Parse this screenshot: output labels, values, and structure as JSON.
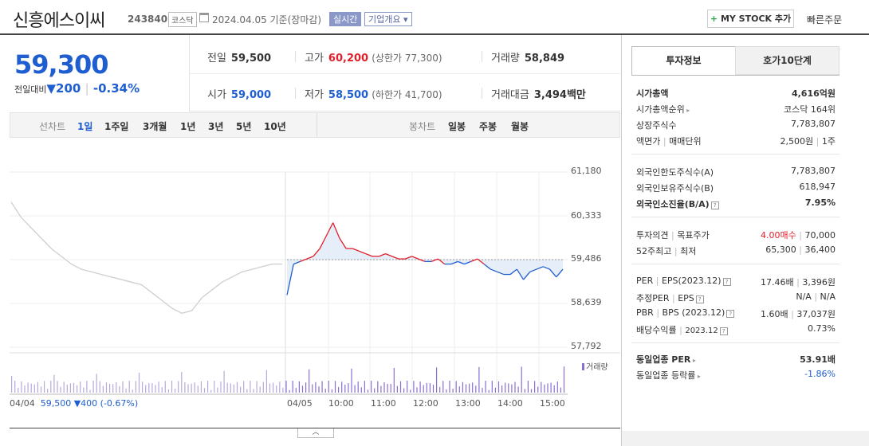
{
  "header": {
    "title": "신흥에스이씨",
    "code": "243840",
    "market": "코스닥",
    "date": "2024.04.05 기준(장마감)",
    "realtime": "실시간",
    "overview": "기업개요 ▾",
    "mystock_label": "MY STOCK 추가",
    "mystock_plus": "+",
    "quick_order": "빠른주문"
  },
  "price": {
    "current": "59,300",
    "change_label": "전일대비",
    "change_arrow": "▼",
    "change": "200",
    "sep": "|",
    "change_pct": "-0.34%"
  },
  "stats": {
    "prev_close": {
      "k": "전일",
      "v": "59,500"
    },
    "high": {
      "k": "고가",
      "v": "60,200",
      "sub": "(상한가 77,300)"
    },
    "volume": {
      "k": "거래량",
      "v": "58,849"
    },
    "open": {
      "k": "시가",
      "v": "59,000"
    },
    "low": {
      "k": "저가",
      "v": "58,500",
      "sub": "(하한가 41,700)"
    },
    "amount": {
      "k": "거래대금",
      "v": "3,494",
      "unit": "백만"
    }
  },
  "period_bar": {
    "line_label": "선차트",
    "line_items": [
      "1일",
      "1주일",
      "3개월",
      "1년",
      "3년",
      "5년",
      "10년"
    ],
    "candle_label": "봉차트",
    "candle_items": [
      "일봉",
      "주봉",
      "월봉"
    ]
  },
  "chart_data": {
    "type": "line",
    "y_ticks": [
      "61,180",
      "60,333",
      "59,486",
      "58,639",
      "57,792"
    ],
    "ylim": [
      57792,
      61180
    ],
    "reference_price": 59486,
    "x_ticks": [
      "04/04",
      "04/05",
      "10:00",
      "11:00",
      "12:00",
      "13:00",
      "14:00",
      "15:00"
    ],
    "volume_legend": "거래량",
    "prev_day_info": {
      "date": "04/04",
      "price": "59,500",
      "arrow": "▼",
      "change": "400",
      "pct": "(-0.67%)"
    },
    "series": [
      {
        "values": [
          60600,
          60300,
          60100,
          59900,
          59700,
          59550,
          59400,
          59300,
          59250,
          59200,
          59150,
          59100,
          59050,
          59000,
          58850,
          58700,
          58550,
          58450,
          58500,
          58750,
          58900,
          59050,
          59150,
          59250,
          59300,
          59350,
          59400,
          59400
        ]
      },
      {
        "values": [
          58800,
          59400,
          59450,
          59500,
          59550,
          59700,
          59950,
          60200,
          59900,
          59700,
          59700,
          59650,
          59600,
          59550,
          59550,
          59600,
          59550,
          59500,
          59500,
          59550,
          59500,
          59450,
          59450,
          59500,
          59400,
          59400,
          59450,
          59400,
          59450,
          59500,
          59400,
          59300,
          59250,
          59200,
          59200,
          59300,
          59100,
          59250,
          59300,
          59350,
          59300,
          59150,
          59300
        ]
      }
    ]
  },
  "tabs": {
    "active": "투자정보",
    "inactive": "호가10단계"
  },
  "info": {
    "market_cap": {
      "k": "시가총액",
      "v": "4,616억원"
    },
    "rank": {
      "k": "시가총액순위",
      "v": "코스닥 164위"
    },
    "shares": {
      "k": "상장주식수",
      "v": "7,783,807"
    },
    "par": {
      "k1": "액면가",
      "k2": "매매단위",
      "v1": "2,500원",
      "v2": "1주"
    },
    "foreign_limit": {
      "k": "외국인한도주식수(A)",
      "v": "7,783,807"
    },
    "foreign_hold": {
      "k": "외국인보유주식수(B)",
      "v": "618,947"
    },
    "foreign_ratio": {
      "k": "외국인소진율(B/A)",
      "v": "7.95%"
    },
    "opinion": {
      "k1": "투자의견",
      "k2": "목표주가",
      "v1": "4.00매수",
      "v2": "70,000"
    },
    "range52": {
      "k1": "52주최고",
      "k2": "최저",
      "v1": "65,300",
      "v2": "36,400"
    },
    "per": {
      "k1": "PER",
      "k2": "EPS(2023.12)",
      "v1": "17.46배",
      "v2": "3,396원"
    },
    "est_per": {
      "k1": "추정PER",
      "k2": "EPS",
      "v1": "N/A",
      "v2": "N/A"
    },
    "pbr": {
      "k1": "PBR",
      "k2": "BPS (2023.12)",
      "v1": "1.60배",
      "v2": "37,037원"
    },
    "dividend": {
      "k1": "배당수익률",
      "k2": "2023.12",
      "v": "0.73%"
    },
    "sector_per": {
      "k": "동일업종 PER",
      "v": "53.91배"
    },
    "sector_change": {
      "k": "동일업종 등락률",
      "v": "-1.86%"
    }
  },
  "colors": {
    "up": "#e0202b",
    "down": "#1f5ed1",
    "prev": "#cfcfcf",
    "volume": "#8a6fd1"
  }
}
